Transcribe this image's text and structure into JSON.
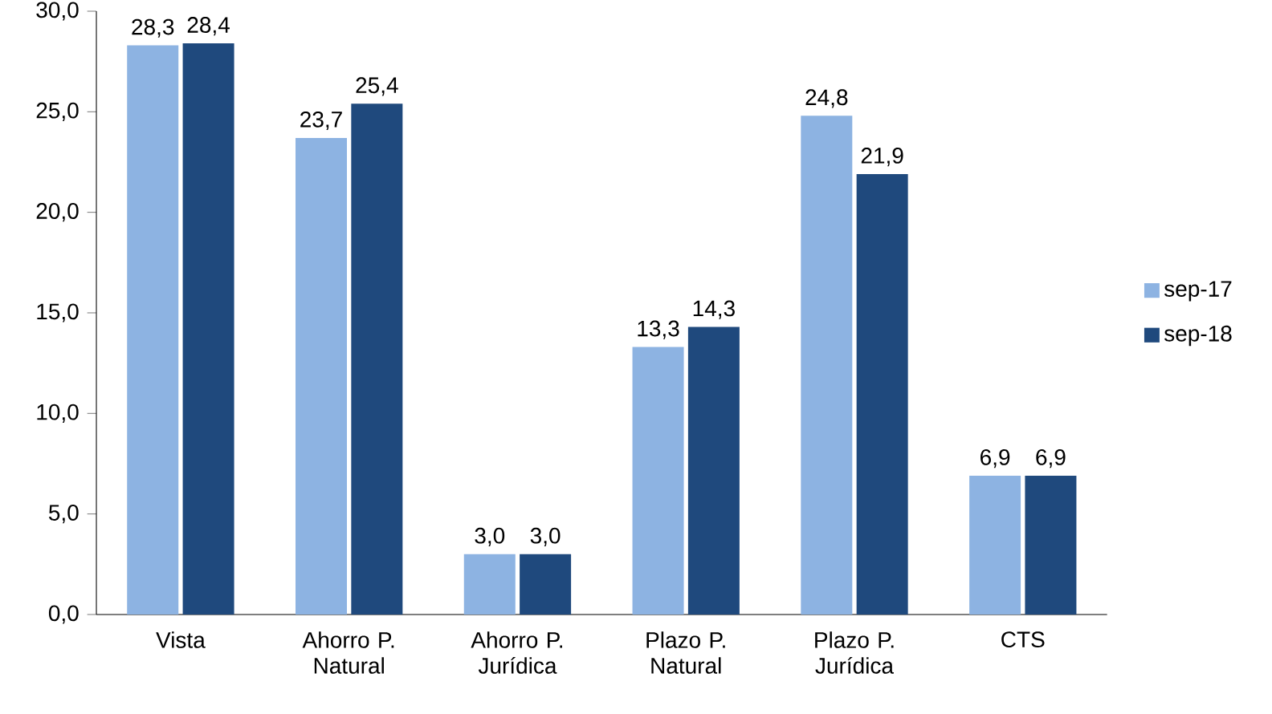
{
  "chart_data": {
    "type": "bar",
    "categories": [
      "Vista",
      "Ahorro P. Natural",
      "Ahorro P. Jurídica",
      "Plazo P. Natural",
      "Plazo P. Jurídica",
      "CTS"
    ],
    "series": [
      {
        "name": "sep-17",
        "color": "#8db3e2",
        "values": [
          28.3,
          23.7,
          3.0,
          13.3,
          24.8,
          6.9
        ],
        "value_labels": [
          "28,3",
          "23,7",
          "3,0",
          "13,3",
          "24,8",
          "6,9"
        ]
      },
      {
        "name": "sep-18",
        "color": "#1f497d",
        "values": [
          28.4,
          25.4,
          3.0,
          14.3,
          21.9,
          6.9
        ],
        "value_labels": [
          "28,4",
          "25,4",
          "3,0",
          "14,3",
          "21,9",
          "6,9"
        ]
      }
    ],
    "ylim": [
      0,
      30
    ],
    "yticks": [
      {
        "value": 0,
        "label": "0,0"
      },
      {
        "value": 5,
        "label": "5,0"
      },
      {
        "value": 10,
        "label": "10,0"
      },
      {
        "value": 15,
        "label": "15,0"
      },
      {
        "value": 20,
        "label": "20,0"
      },
      {
        "value": 25,
        "label": "25,0"
      },
      {
        "value": 30,
        "label": "30,0"
      }
    ],
    "legend": "right",
    "grid": false
  }
}
